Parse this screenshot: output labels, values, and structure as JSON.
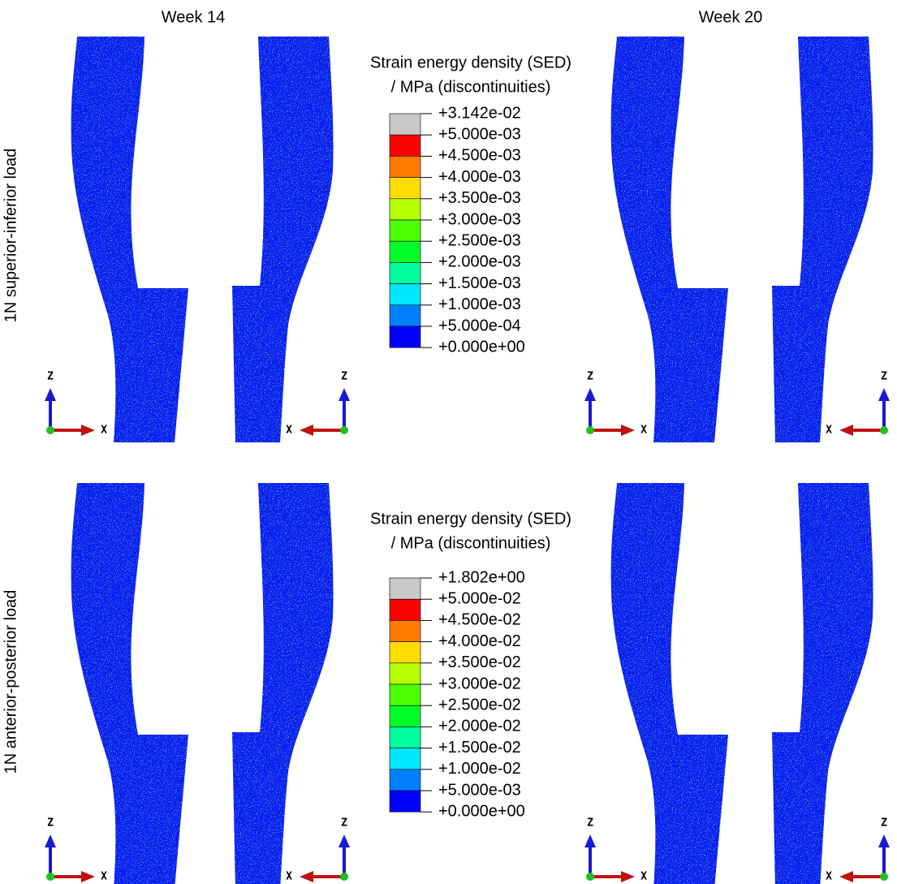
{
  "column_titles": [
    "Week 14",
    "Week 20"
  ],
  "rows": [
    {
      "label": "1N superior-inferior load",
      "legend": {
        "title": [
          "Strain energy density (SED)",
          "/ MPa (discontinuities)"
        ],
        "labels": [
          "+3.142e-02",
          "+5.000e-03",
          "+4.500e-03",
          "+4.000e-03",
          "+3.500e-03",
          "+3.000e-03",
          "+2.500e-03",
          "+2.000e-03",
          "+1.500e-03",
          "+1.000e-03",
          "+5.000e-04",
          "+0.000e+00"
        ]
      }
    },
    {
      "label": "1N anterior-posterior load",
      "legend": {
        "title": [
          "Strain energy density (SED)",
          "/ MPa (discontinuities)"
        ],
        "labels": [
          "+1.802e+00",
          "+5.000e-02",
          "+4.500e-02",
          "+4.000e-02",
          "+3.500e-02",
          "+3.000e-02",
          "+2.500e-02",
          "+2.000e-02",
          "+1.500e-02",
          "+1.000e-02",
          "+5.000e-03",
          "+0.000e+00"
        ]
      }
    }
  ],
  "legend_colors": [
    "#c8c8c8",
    "#ff0000",
    "#ff7a00",
    "#ffdc00",
    "#b8ff00",
    "#4cff00",
    "#00ff28",
    "#00ff9e",
    "#00e6ff",
    "#0080ff",
    "#0000ff"
  ],
  "axis_labels": {
    "z": "Z",
    "x": "X"
  }
}
